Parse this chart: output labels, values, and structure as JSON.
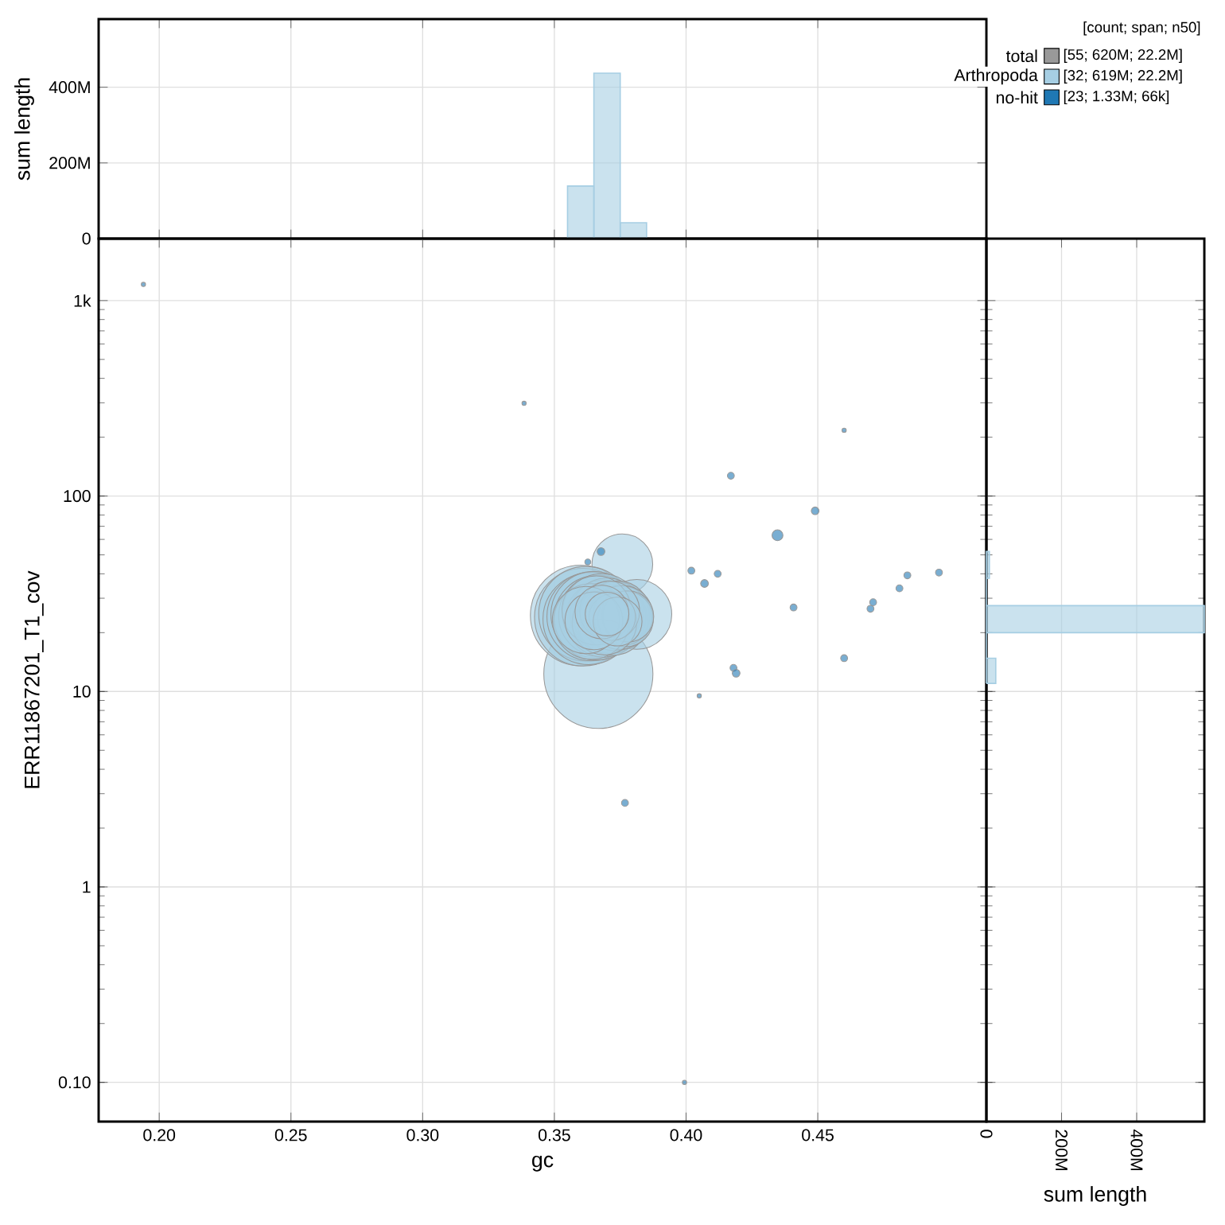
{
  "chart_data": [
    {
      "type": "histogram",
      "ylabel": "sum length",
      "bins": [
        0.355,
        0.365,
        0.375,
        0.385
      ],
      "values": [
        139000000,
        437000000,
        42000000
      ],
      "color": "#a6cee3",
      "xlim": [
        0.177,
        0.514
      ],
      "ylim": [
        0,
        580000000
      ],
      "xticks": [
        0.2,
        0.25,
        0.3,
        0.35,
        0.4,
        0.45
      ],
      "yticks": [
        0,
        {
          "value": 200000000,
          "label": "200M"
        },
        {
          "value": 400000000,
          "label": "400M"
        }
      ],
      "grid": true,
      "tick_labels": "y"
    },
    {
      "type": "bubble",
      "xlabel": "gc",
      "ylabel": "ERR11867201_T1_cov",
      "xlim": [
        0.177,
        0.514
      ],
      "ylim": [
        0.063,
        2075
      ],
      "log": "y",
      "grid": true,
      "legend": "top right",
      "legend_title": "[count; span; n50]",
      "xticks": [
        {
          "value": 0.2,
          "label": "0.20"
        },
        {
          "value": 0.25,
          "label": "0.25"
        },
        {
          "value": 0.3,
          "label": "0.30"
        },
        {
          "value": 0.35,
          "label": "0.35"
        },
        {
          "value": 0.4,
          "label": "0.40"
        },
        {
          "value": 0.45,
          "label": "0.45"
        }
      ],
      "yticks": [
        {
          "value": 0.1,
          "label": "0.10"
        },
        1,
        10,
        100,
        {
          "value": 1000,
          "label": "1k"
        }
      ],
      "annotations": [
        "[55; 620M; 22.2M]",
        "[32; 619M; 22.2M]",
        "[23; 1.33M; 66k]"
      ],
      "series": [
        {
          "name": "total",
          "color": "#999999"
        },
        {
          "name": "Arthropoda",
          "color": "#a6cee3",
          "x": [
            0.3667,
            0.3758,
            0.3813,
            0.36,
            0.361,
            0.362,
            0.363,
            0.364,
            0.365,
            0.366,
            0.367,
            0.368,
            0.369,
            0.37,
            0.371,
            0.372,
            0.373,
            0.374,
            0.375,
            0.376,
            0.377,
            0.378,
            0.364,
            0.366,
            0.369,
            0.371,
            0.362,
            0.372,
            0.365,
            0.368,
            0.374,
            0.37
          ],
          "values": [
            12.3,
            44.7,
            24.8,
            24.5,
            24.0,
            25.0,
            23.5,
            24.2,
            24.8,
            23.8,
            24.4,
            25.2,
            23.6,
            24.6,
            24.0,
            23.2,
            24.3,
            25.0,
            23.9,
            24.5,
            23.5,
            24.2,
            22.8,
            26.0,
            22.5,
            25.8,
            23.2,
            24.0,
            23.0,
            25.5,
            22.8,
            24.9
          ],
          "sizes": [
            1.0,
            0.31,
            0.41,
            0.85,
            0.8,
            0.75,
            0.7,
            0.66,
            0.62,
            0.6,
            0.55,
            0.52,
            0.5,
            0.46,
            0.44,
            0.42,
            0.4,
            0.36,
            0.34,
            0.3,
            0.26,
            0.22,
            0.48,
            0.4,
            0.35,
            0.3,
            0.38,
            0.18,
            0.28,
            0.24,
            0.2,
            0.16
          ]
        },
        {
          "name": "no-hit",
          "color": "#1f78b4",
          "x": [
            0.3677,
            0.417,
            0.449,
            0.4347,
            0.402,
            0.407,
            0.412,
            0.4408,
            0.46,
            0.3385,
            0.418,
            0.419,
            0.405,
            0.46,
            0.47,
            0.471,
            0.481,
            0.484,
            0.496,
            0.3768,
            0.194,
            0.3994,
            0.3627
          ],
          "values": [
            52,
            127,
            84,
            63,
            41.5,
            35.7,
            40,
            26.9,
            217,
            298,
            13.2,
            12.4,
            9.5,
            14.8,
            26.5,
            28.6,
            33.7,
            39.3,
            40.6,
            2.69,
            1210,
            0.1,
            46
          ],
          "sizes": [
            0.005,
            0.004,
            0.005,
            0.01,
            0.004,
            0.005,
            0.004,
            0.004,
            0.0015,
            0.0015,
            0.004,
            0.005,
            0.0015,
            0.004,
            0.004,
            0.004,
            0.004,
            0.004,
            0.004,
            0.004,
            0.0015,
            0.0015,
            0.003
          ]
        }
      ]
    },
    {
      "type": "histogram",
      "orientation": "horizontal",
      "xlabel": "sum length",
      "bins": [
        11,
        14.8,
        20,
        27.5,
        38,
        52
      ],
      "values": [
        25000000,
        0,
        580000000,
        0,
        8000000
      ],
      "color": "#a6cee3",
      "xlim": [
        0,
        580000000
      ],
      "ylim": [
        0.063,
        2075
      ],
      "log": "y",
      "xticks": [
        0,
        {
          "value": 200000000,
          "label": "200M"
        },
        {
          "value": 400000000,
          "label": "400M"
        }
      ],
      "yticks": [
        0.1,
        1,
        10,
        100,
        1000
      ],
      "grid": true,
      "tick_labels": "x"
    }
  ]
}
